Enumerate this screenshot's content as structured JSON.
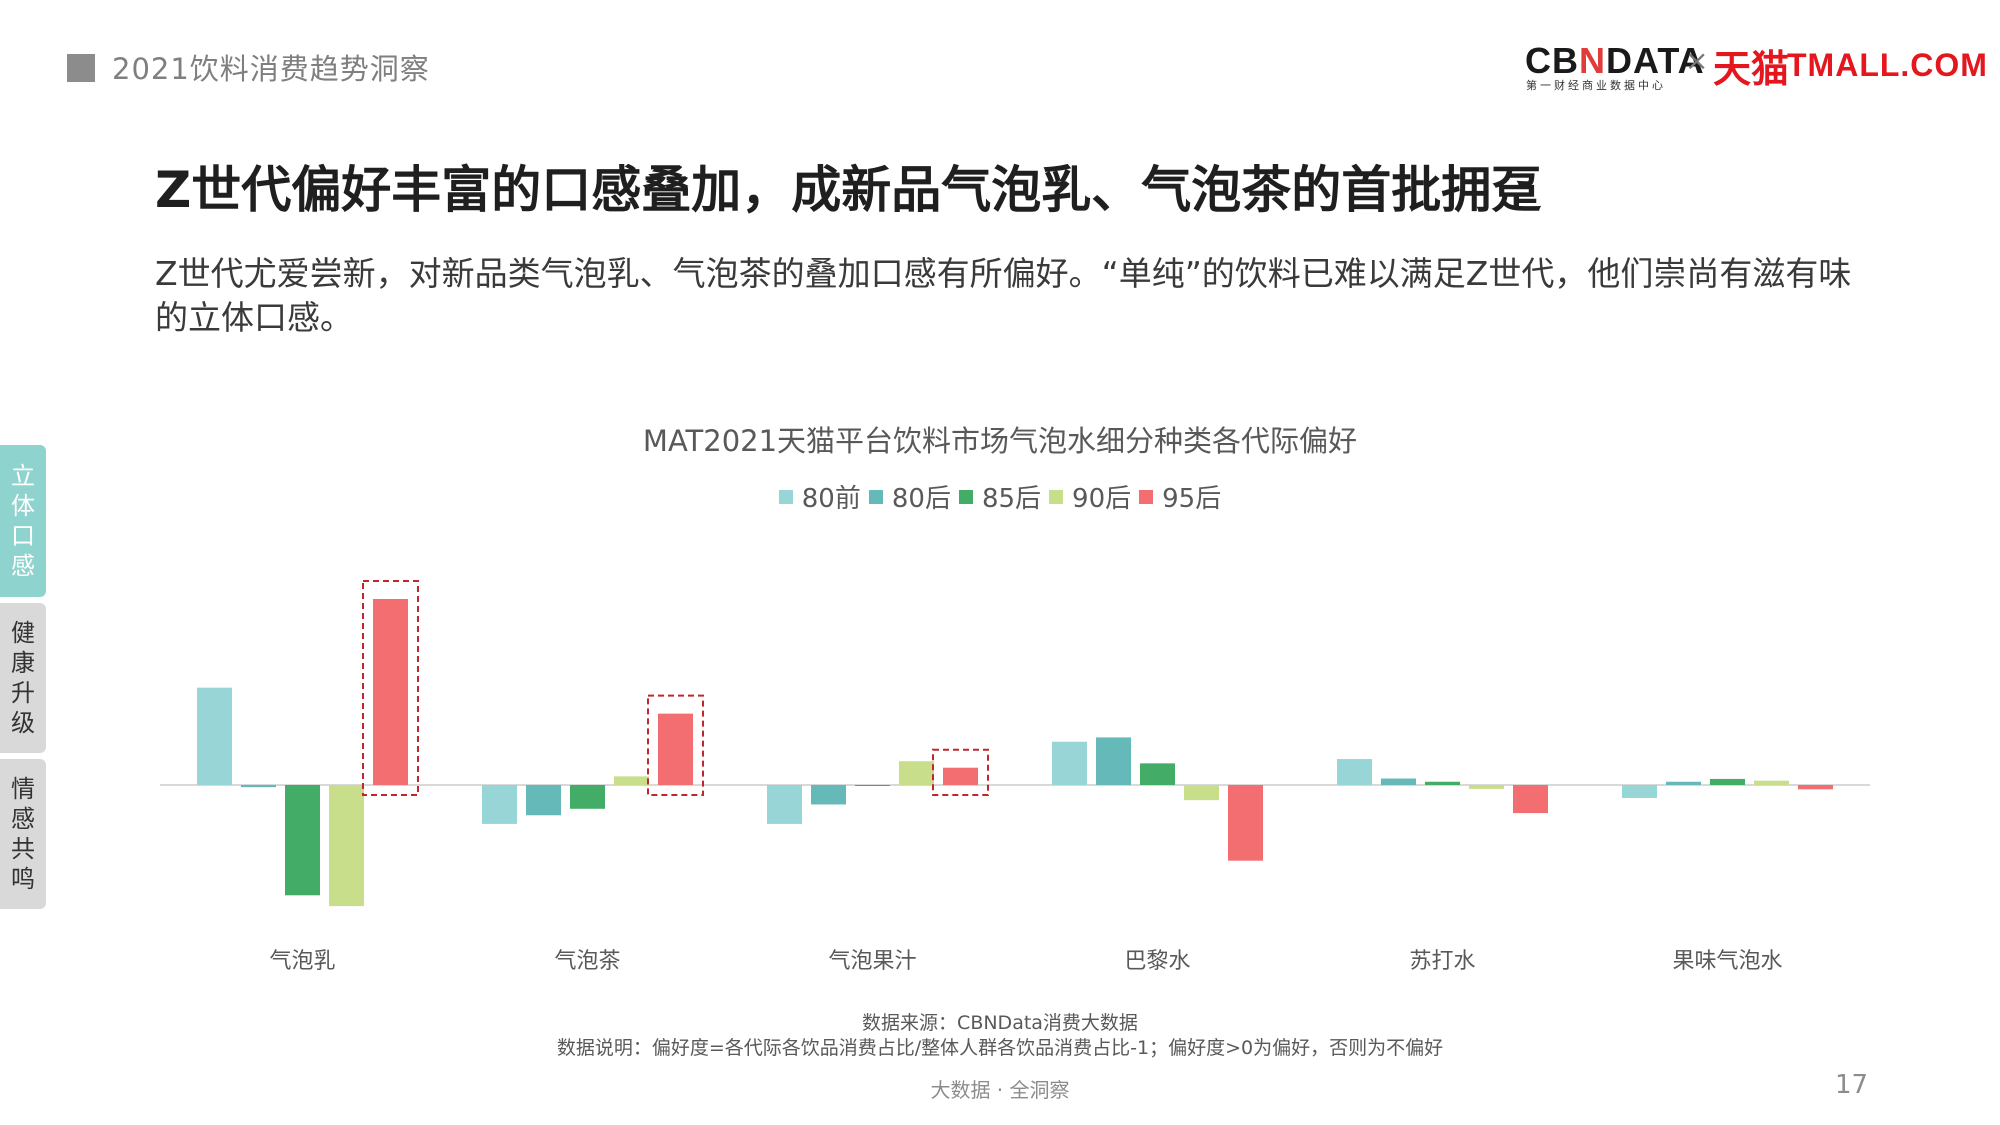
{
  "header": {
    "title": "2021饮料消费趋势洞察"
  },
  "brand": {
    "cbn": "CB",
    "cbn_n": "N",
    "cbn_rest": "DATA",
    "cbn_sub": "第一财经商业数据中心",
    "separator": "×",
    "tmall_cn": "天猫",
    "tmall_en": "TMALL.COM"
  },
  "main_title": "Z世代偏好丰富的口感叠加，成新品气泡乳、气泡茶的首批拥趸",
  "subtitle": "Z世代尤爱尝新，对新品类气泡乳、气泡茶的叠加口感有所偏好。“单纯”的饮料已难以满足Z世代，他们崇尚有滋有味的立体口感。",
  "side_tabs": [
    {
      "label": "立体口感",
      "active": true
    },
    {
      "label": "健康升级",
      "active": false
    },
    {
      "label": "情感共鸣",
      "active": false
    }
  ],
  "chart_data": {
    "type": "bar",
    "title": "MAT2021天猫平台饮料市场气泡水细分种类各代际偏好",
    "categories": [
      "气泡乳",
      "气泡茶",
      "气泡果汁",
      "巴黎水",
      "苏打水",
      "果味气泡水"
    ],
    "series": [
      {
        "name": "80前",
        "color": "#97d5d6",
        "values": [
          0.45,
          -0.18,
          -0.18,
          0.2,
          0.12,
          -0.06
        ]
      },
      {
        "name": "80后",
        "color": "#66b9b9",
        "values": [
          -0.01,
          -0.14,
          -0.09,
          0.22,
          0.03,
          0.015
        ]
      },
      {
        "name": "85后",
        "color": "#43ac66",
        "values": [
          -0.51,
          -0.11,
          0.0,
          0.1,
          0.015,
          0.028
        ]
      },
      {
        "name": "90后",
        "color": "#c9de8b",
        "values": [
          -0.56,
          0.04,
          0.11,
          -0.07,
          -0.018,
          0.02
        ]
      },
      {
        "name": "95后",
        "color": "#f26e70",
        "values": [
          0.86,
          0.33,
          0.08,
          -0.35,
          -0.13,
          -0.02
        ]
      }
    ],
    "ylim": [
      -0.6,
      0.9
    ],
    "highlighted_series": "95后",
    "highlighted_categories": [
      "气泡乳",
      "气泡茶",
      "气泡果汁"
    ],
    "legend_position": "top",
    "grid": false
  },
  "footnotes": {
    "source": "数据来源：CBNData消费大数据",
    "note": "数据说明：偏好度=各代际各饮品消费占比/整体人群各饮品消费占比-1；偏好度>0为偏好，否则为不偏好"
  },
  "bottom_tag": "大数据 · 全洞察",
  "page_number": "17"
}
